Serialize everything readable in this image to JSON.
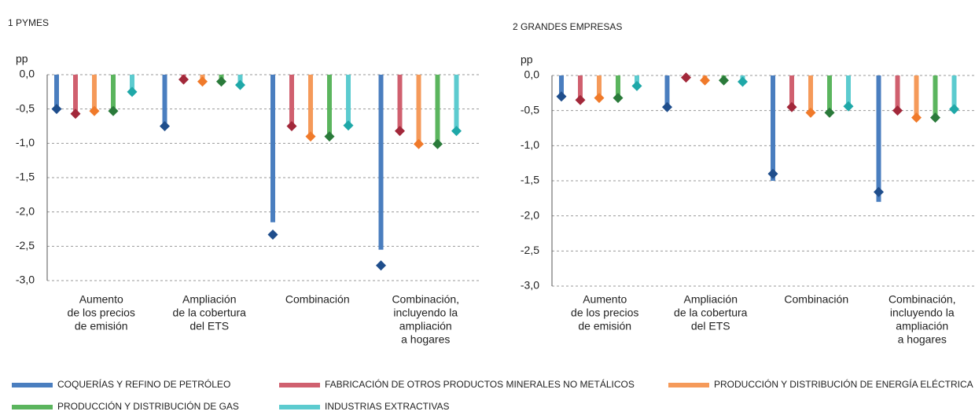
{
  "chart_data": [
    {
      "type": "bar",
      "title": "1  PYMES",
      "y_label": "pp",
      "categories": [
        [
          "Aumento",
          "de los precios",
          "de emisión"
        ],
        [
          "Ampliación",
          "de la cobertura",
          "del ETS"
        ],
        [
          "Combinación"
        ],
        [
          "Combinación,",
          "incluyendo la",
          "ampliación",
          "a hogares"
        ]
      ],
      "ylim": [
        -3,
        0
      ],
      "grid": true,
      "yticks": [
        {
          "value": 0,
          "label": "0,0"
        },
        {
          "value": -0.5,
          "label": "-0,5"
        },
        {
          "value": -1,
          "label": "-1,0"
        },
        {
          "value": -1.5,
          "label": "-1,5"
        },
        {
          "value": -2,
          "label": "-2,0"
        },
        {
          "value": -2.5,
          "label": "-2,5"
        },
        {
          "value": -3,
          "label": "-3,0"
        }
      ],
      "series": [
        {
          "name": "COQUERÍAS Y REFINO DE PETRÓLEO",
          "color": "#4a7ebf",
          "marker_color": "#1f4e8c",
          "values": [
            -0.48,
            -0.75,
            -2.15,
            -2.55
          ],
          "marker_values": [
            -0.5,
            -0.75,
            -2.33,
            -2.78
          ]
        },
        {
          "name": "FABRICACIÓN DE OTROS PRODUCTOS MINERALES NO METÁLICOS",
          "color": "#d0606f",
          "marker_color": "#a2283a",
          "values": [
            -0.55,
            -0.05,
            -0.75,
            -0.8
          ],
          "marker_values": [
            -0.57,
            -0.07,
            -0.75,
            -0.82
          ]
        },
        {
          "name": "PRODUCCIÓN Y DISTRIBUCIÓN DE ENERGÍA ELÉCTRICA",
          "color": "#f59a5a",
          "marker_color": "#f07a2a",
          "values": [
            -0.52,
            -0.1,
            -0.88,
            -1.0
          ],
          "marker_values": [
            -0.53,
            -0.1,
            -0.9,
            -1.01
          ]
        },
        {
          "name": "PRODUCCIÓN Y DISTRIBUCIÓN DE GAS",
          "color": "#5bb55e",
          "marker_color": "#2a7a3a",
          "values": [
            -0.52,
            -0.1,
            -0.88,
            -1.0
          ],
          "marker_values": [
            -0.53,
            -0.1,
            -0.9,
            -1.01
          ]
        },
        {
          "name": "INDUSTRIAS EXTRACTIVAS",
          "color": "#5ccbcf",
          "marker_color": "#1fa8a8",
          "values": [
            -0.25,
            -0.15,
            -0.75,
            -0.82
          ],
          "marker_values": [
            -0.25,
            -0.15,
            -0.74,
            -0.82
          ]
        }
      ]
    },
    {
      "type": "bar",
      "title": "2  GRANDES EMPRESAS",
      "y_label": "pp",
      "categories": [
        [
          "Aumento",
          "de los precios",
          "de emisión"
        ],
        [
          "Ampliación",
          "de la cobertura",
          "del ETS"
        ],
        [
          "Combinación"
        ],
        [
          "Combinación,",
          "incluyendo la",
          "ampliación",
          "a hogares"
        ]
      ],
      "ylim": [
        -3,
        0
      ],
      "grid": true,
      "yticks": [
        {
          "value": 0,
          "label": "0,0"
        },
        {
          "value": -0.5,
          "label": "-0,5"
        },
        {
          "value": -1,
          "label": "-1,0"
        },
        {
          "value": -1.5,
          "label": "-1,5"
        },
        {
          "value": -2,
          "label": "-2,0"
        },
        {
          "value": -2.5,
          "label": "-2,5"
        },
        {
          "value": -3,
          "label": "-3,0"
        }
      ],
      "series": [
        {
          "color": "#4a7ebf",
          "marker_color": "#1f4e8c",
          "values": [
            -0.3,
            -0.45,
            -1.5,
            -1.8
          ],
          "marker_values": [
            -0.3,
            -0.45,
            -1.4,
            -1.66
          ]
        },
        {
          "color": "#d0606f",
          "marker_color": "#a2283a",
          "values": [
            -0.33,
            -0.03,
            -0.45,
            -0.5
          ],
          "marker_values": [
            -0.35,
            -0.03,
            -0.45,
            -0.5
          ]
        },
        {
          "color": "#f59a5a",
          "marker_color": "#f07a2a",
          "values": [
            -0.33,
            -0.07,
            -0.52,
            -0.6
          ],
          "marker_values": [
            -0.32,
            -0.07,
            -0.53,
            -0.6
          ]
        },
        {
          "color": "#5bb55e",
          "marker_color": "#2a7a3a",
          "values": [
            -0.33,
            -0.07,
            -0.52,
            -0.6
          ],
          "marker_values": [
            -0.32,
            -0.07,
            -0.53,
            -0.6
          ]
        },
        {
          "color": "#5ccbcf",
          "marker_color": "#1fa8a8",
          "values": [
            -0.15,
            -0.08,
            -0.45,
            -0.5
          ],
          "marker_values": [
            -0.15,
            -0.09,
            -0.44,
            -0.48
          ]
        }
      ]
    }
  ]
}
